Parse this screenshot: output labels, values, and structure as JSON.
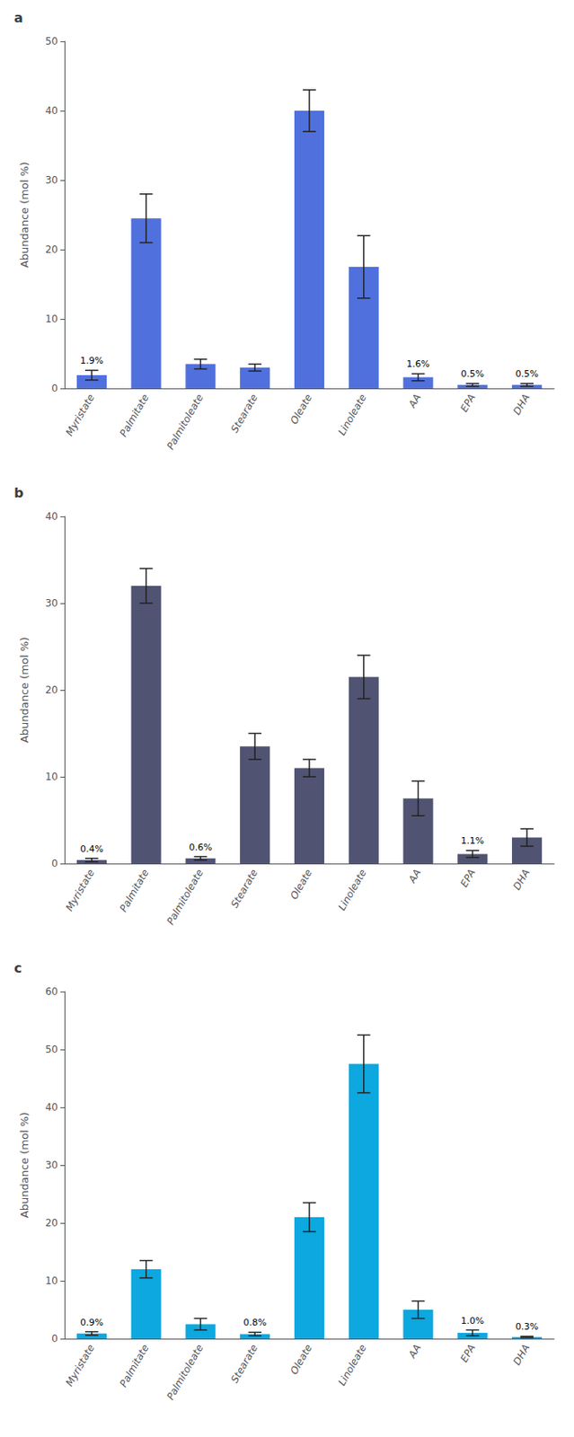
{
  "chart_data": [
    {
      "type": "bar",
      "title": "a",
      "categories": [
        "Myristate",
        "Palmitate",
        "Palmitoleate",
        "Stearate",
        "Oleate",
        "Linoleate",
        "AA",
        "EPA",
        "DHA"
      ],
      "values": [
        1.9,
        24.5,
        3.5,
        3.0,
        40.0,
        17.5,
        1.6,
        0.5,
        0.5
      ],
      "errors": [
        0.7,
        3.5,
        0.7,
        0.5,
        3.0,
        4.5,
        0.5,
        0.2,
        0.2
      ],
      "ylabel": "Abundance (mol %)",
      "ylim": [
        0,
        50
      ],
      "yticks": [
        0,
        10,
        20,
        30,
        40,
        50
      ],
      "grid": false,
      "annotations": [
        {
          "x": "Myristate",
          "text": "1.9%"
        },
        {
          "x": "AA",
          "text": "1.6%"
        },
        {
          "x": "EPA",
          "text": "0.5%"
        },
        {
          "x": "DHA",
          "text": "0.5%"
        }
      ]
    },
    {
      "type": "bar",
      "title": "b",
      "categories": [
        "Myristate",
        "Palmitate",
        "Palmitoleate",
        "Stearate",
        "Oleate",
        "Linoleate",
        "AA",
        "EPA",
        "DHA"
      ],
      "values": [
        0.4,
        32.0,
        0.6,
        13.5,
        11.0,
        21.5,
        7.5,
        1.1,
        3.0
      ],
      "errors": [
        0.2,
        2.0,
        0.2,
        1.5,
        1.0,
        2.5,
        2.0,
        0.4,
        1.0
      ],
      "ylabel": "Abundance (mol %)",
      "ylim": [
        0,
        40
      ],
      "yticks": [
        0,
        10,
        20,
        30,
        40
      ],
      "grid": false,
      "annotations": [
        {
          "x": "Myristate",
          "text": "0.4%"
        },
        {
          "x": "Palmitoleate",
          "text": "0.6%"
        },
        {
          "x": "EPA",
          "text": "1.1%"
        }
      ]
    },
    {
      "type": "bar",
      "title": "c",
      "categories": [
        "Myristate",
        "Palmitate",
        "Palmitoleate",
        "Stearate",
        "Oleate",
        "Linoleate",
        "AA",
        "EPA",
        "DHA"
      ],
      "values": [
        0.9,
        12.0,
        2.5,
        0.8,
        21.0,
        47.5,
        5.0,
        1.0,
        0.3
      ],
      "errors": [
        0.3,
        1.5,
        1.0,
        0.3,
        2.5,
        5.0,
        1.5,
        0.5,
        0.1
      ],
      "ylabel": "Abundance (mol %)",
      "ylim": [
        0,
        60
      ],
      "yticks": [
        0,
        10,
        20,
        30,
        40,
        50,
        60
      ],
      "grid": false,
      "annotations": [
        {
          "x": "Myristate",
          "text": "0.9%"
        },
        {
          "x": "Stearate",
          "text": "0.8%"
        },
        {
          "x": "EPA",
          "text": "1.0%"
        },
        {
          "x": "DHA",
          "text": "0.3%"
        }
      ]
    }
  ]
}
